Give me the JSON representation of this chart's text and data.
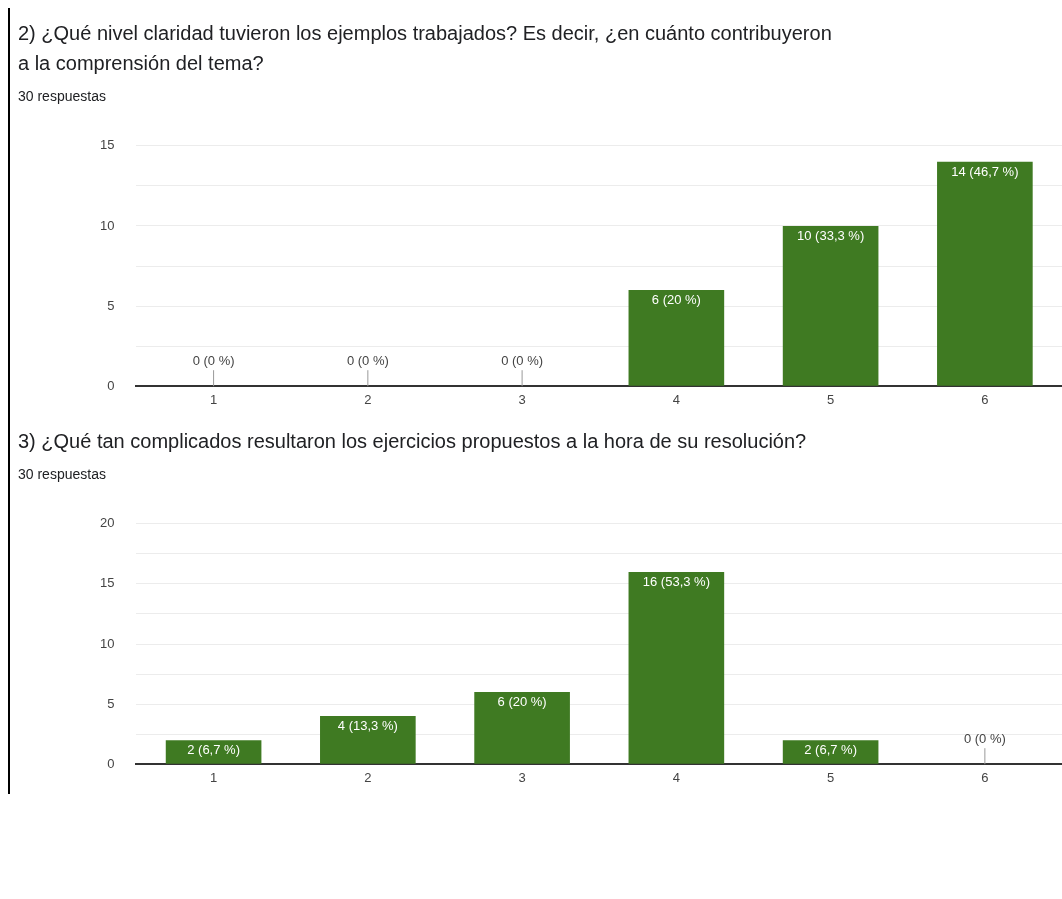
{
  "chart_data": [
    {
      "type": "bar",
      "title": "2) ¿Qué nivel claridad tuvieron los ejemplos trabajados? Es decir, ¿en cuánto contribuyeron a la comprensión del tema?",
      "subtitle": "30 respuestas",
      "categories": [
        "1",
        "2",
        "3",
        "4",
        "5",
        "6"
      ],
      "values": [
        0,
        0,
        0,
        6,
        10,
        14
      ],
      "color": "#3f7a22",
      "ylim": [
        0,
        15
      ],
      "yticks": [
        0,
        {
          "value": 2.5,
          "label": null
        },
        5,
        {
          "value": 7.5,
          "label": null
        },
        10,
        {
          "value": 12.5,
          "label": null
        },
        15
      ],
      "grid": "y",
      "value_labels": [
        "0 (0 %)",
        "0 (0 %)",
        "0 (0 %)",
        "6 (20 %)",
        "10 (33,3 %)",
        "14 (46,7 %)"
      ]
    },
    {
      "type": "bar",
      "title": "3) ¿Qué tan complicados resultaron los ejercicios propuestos a la hora de su resolución?",
      "subtitle": "30 respuestas",
      "categories": [
        "1",
        "2",
        "3",
        "4",
        "5",
        "6"
      ],
      "values": [
        2,
        4,
        6,
        16,
        2,
        0
      ],
      "color": "#3f7a22",
      "ylim": [
        0,
        20
      ],
      "yticks": [
        0,
        {
          "value": 2.5,
          "label": null
        },
        5,
        {
          "value": 7.5,
          "label": null
        },
        10,
        {
          "value": 12.5,
          "label": null
        },
        15,
        {
          "value": 17.5,
          "label": null
        },
        20
      ],
      "grid": "y",
      "value_labels": [
        "2 (6,7 %)",
        "4 (13,3 %)",
        "6 (20 %)",
        "16 (53,3 %)",
        "2 (6,7 %)",
        "0 (0 %)"
      ]
    }
  ]
}
